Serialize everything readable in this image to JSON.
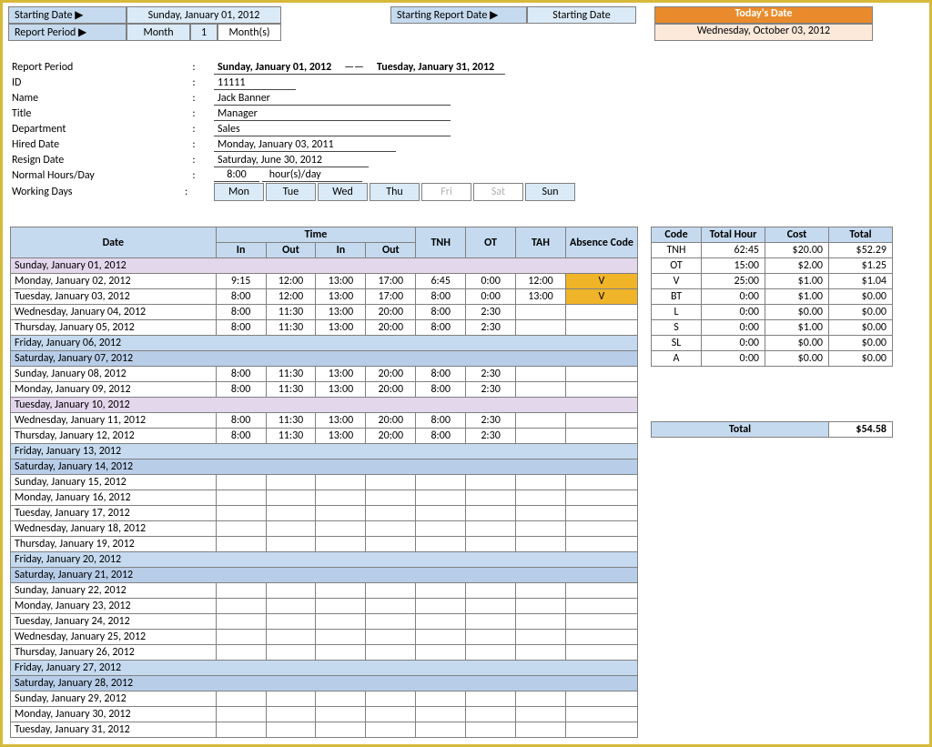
{
  "colors": {
    "border_gold": "#d6b93a",
    "blue_header": "#c5daef",
    "blue_light": "#daeaf7",
    "blue_sat": "#b7cde8",
    "lavender": "#e3d7ec",
    "orange_hdr": "#e98b2c",
    "orange_light": "#fce9da",
    "yellow_code": "#f0b429",
    "grid_border": "#808080",
    "muted_text": "#b0b0b0"
  },
  "header": {
    "starting_date_lbl": "Starting Date ▶",
    "starting_date_val": "Sunday, January 01, 2012",
    "starting_report_lbl": "Starting Report Date ▶",
    "starting_report_val": "Starting Date",
    "todays_date_lbl": "Today's Date",
    "todays_date_val": "Wednesday, October 03, 2012",
    "report_period_lbl": "Report Period ▶",
    "rp_unit": "Month",
    "rp_count": "1",
    "rp_suffix": "Month(s)"
  },
  "info": {
    "rp_lbl": "Report Period",
    "rp_from": "Sunday, January 01, 2012",
    "rp_to": "Tuesday, January 31, 2012",
    "id_lbl": "ID",
    "id_val": "11111",
    "name_lbl": "Name",
    "name_val": "Jack Banner",
    "title_lbl": "Title",
    "title_val": "Manager",
    "dept_lbl": "Department",
    "dept_val": "Sales",
    "hired_lbl": "Hired Date",
    "hired_val": "Monday, January 03, 2011",
    "resign_lbl": "Resign Date",
    "resign_val": "Saturday, June 30, 2012",
    "hours_lbl": "Normal Hours/Day",
    "hours_num": "8:00",
    "hours_unit": "hour(s)/day",
    "wd_lbl": "Working Days"
  },
  "working_days": [
    {
      "label": "Mon",
      "on": true
    },
    {
      "label": "Tue",
      "on": true
    },
    {
      "label": "Wed",
      "on": true
    },
    {
      "label": "Thu",
      "on": true
    },
    {
      "label": "Fri",
      "on": false
    },
    {
      "label": "Sat",
      "on": false
    },
    {
      "label": "Sun",
      "on": true
    }
  ],
  "timesheet": {
    "headers": {
      "date": "Date",
      "time": "Time",
      "in": "In",
      "out": "Out",
      "tnh": "TNH",
      "ot": "OT",
      "tah": "TAH",
      "code": "Absence Code"
    },
    "rows": [
      {
        "type": "sun",
        "date": "Sunday, January 01, 2012"
      },
      {
        "type": "data",
        "date": "Monday, January 02, 2012",
        "in1": "9:15",
        "out1": "12:00",
        "in2": "13:00",
        "out2": "17:00",
        "tnh": "6:45",
        "ot": "0:00",
        "tah": "12:00",
        "code": "V"
      },
      {
        "type": "data",
        "date": "Tuesday, January 03, 2012",
        "in1": "8:00",
        "out1": "12:00",
        "in2": "13:00",
        "out2": "17:00",
        "tnh": "8:00",
        "ot": "0:00",
        "tah": "13:00",
        "code": "V"
      },
      {
        "type": "data",
        "date": "Wednesday, January 04, 2012",
        "in1": "8:00",
        "out1": "11:30",
        "in2": "13:00",
        "out2": "20:00",
        "tnh": "8:00",
        "ot": "2:30",
        "tah": "",
        "code": ""
      },
      {
        "type": "data",
        "date": "Thursday, January 05, 2012",
        "in1": "8:00",
        "out1": "11:30",
        "in2": "13:00",
        "out2": "20:00",
        "tnh": "8:00",
        "ot": "2:30",
        "tah": "",
        "code": ""
      },
      {
        "type": "fri",
        "date": "Friday, January 06, 2012"
      },
      {
        "type": "sat",
        "date": "Saturday, January 07, 2012"
      },
      {
        "type": "data",
        "date": "Sunday, January 08, 2012",
        "in1": "8:00",
        "out1": "11:30",
        "in2": "13:00",
        "out2": "20:00",
        "tnh": "8:00",
        "ot": "2:30",
        "tah": "",
        "code": ""
      },
      {
        "type": "data",
        "date": "Monday, January 09, 2012",
        "in1": "8:00",
        "out1": "11:30",
        "in2": "13:00",
        "out2": "20:00",
        "tnh": "8:00",
        "ot": "2:30",
        "tah": "",
        "code": ""
      },
      {
        "type": "sun",
        "date": "Tuesday, January 10, 2012"
      },
      {
        "type": "data",
        "date": "Wednesday, January 11, 2012",
        "in1": "8:00",
        "out1": "11:30",
        "in2": "13:00",
        "out2": "20:00",
        "tnh": "8:00",
        "ot": "2:30",
        "tah": "",
        "code": ""
      },
      {
        "type": "data",
        "date": "Thursday, January 12, 2012",
        "in1": "8:00",
        "out1": "11:30",
        "in2": "13:00",
        "out2": "20:00",
        "tnh": "8:00",
        "ot": "2:30",
        "tah": "",
        "code": ""
      },
      {
        "type": "fri",
        "date": "Friday, January 13, 2012"
      },
      {
        "type": "sat",
        "date": "Saturday, January 14, 2012"
      },
      {
        "type": "blank",
        "date": "Sunday, January 15, 2012"
      },
      {
        "type": "blank",
        "date": "Monday, January 16, 2012"
      },
      {
        "type": "blank",
        "date": "Tuesday, January 17, 2012"
      },
      {
        "type": "blank",
        "date": "Wednesday, January 18, 2012"
      },
      {
        "type": "blank",
        "date": "Thursday, January 19, 2012"
      },
      {
        "type": "fri",
        "date": "Friday, January 20, 2012"
      },
      {
        "type": "sat",
        "date": "Saturday, January 21, 2012"
      },
      {
        "type": "blank",
        "date": "Sunday, January 22, 2012"
      },
      {
        "type": "blank",
        "date": "Monday, January 23, 2012"
      },
      {
        "type": "blank",
        "date": "Tuesday, January 24, 2012"
      },
      {
        "type": "blank",
        "date": "Wednesday, January 25, 2012"
      },
      {
        "type": "blank",
        "date": "Thursday, January 26, 2012"
      },
      {
        "type": "fri",
        "date": "Friday, January 27, 2012"
      },
      {
        "type": "sat",
        "date": "Saturday, January 28, 2012"
      },
      {
        "type": "blank",
        "date": "Sunday, January 29, 2012"
      },
      {
        "type": "blank",
        "date": "Monday, January 30, 2012"
      },
      {
        "type": "blank",
        "date": "Tuesday, January 31, 2012"
      }
    ]
  },
  "summary": {
    "headers": {
      "code": "Code",
      "total_hour": "Total Hour",
      "cost": "Cost",
      "total": "Total"
    },
    "rows": [
      {
        "code": "TNH",
        "hour": "62:45",
        "cost": "$20.00",
        "total": "$52.29"
      },
      {
        "code": "OT",
        "hour": "15:00",
        "cost": "$2.00",
        "total": "$1.25"
      },
      {
        "code": "V",
        "hour": "25:00",
        "cost": "$1.00",
        "total": "$1.04"
      },
      {
        "code": "BT",
        "hour": "0:00",
        "cost": "$1.00",
        "total": "$0.00"
      },
      {
        "code": "L",
        "hour": "0:00",
        "cost": "$0.00",
        "total": "$0.00"
      },
      {
        "code": "S",
        "hour": "0:00",
        "cost": "$1.00",
        "total": "$0.00"
      },
      {
        "code": "SL",
        "hour": "0:00",
        "cost": "$0.00",
        "total": "$0.00"
      },
      {
        "code": "A",
        "hour": "0:00",
        "cost": "$0.00",
        "total": "$0.00"
      }
    ],
    "grand_total_lbl": "Total",
    "grand_total_val": "$54.58"
  }
}
